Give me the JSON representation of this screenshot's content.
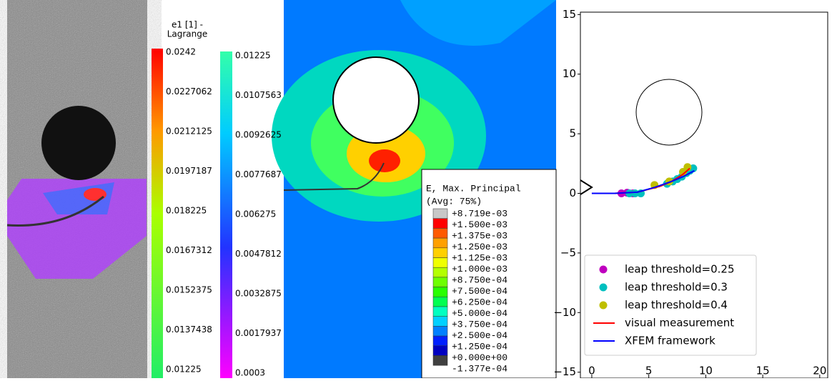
{
  "dic_panel": {
    "title": [
      "e1 [1] -",
      "Lagrange"
    ],
    "scale_left": [
      "0.0242",
      "0.0227062",
      "0.0212125",
      "0.0197187",
      "0.018225",
      "0.0167312",
      "0.0152375",
      "0.0137438",
      "0.01225"
    ],
    "scale_right": [
      "0.01225",
      "0.0107563",
      "0.0092625",
      "0.0077687",
      "0.006275",
      "0.0047812",
      "0.0032875",
      "0.0017937",
      "0.0003"
    ]
  },
  "fem_panel": {
    "legend_title": [
      "E, Max. Principal",
      "(Avg: 75%)"
    ],
    "levels": [
      "+8.719e-03",
      "+1.500e-03",
      "+1.375e-03",
      "+1.250e-03",
      "+1.125e-03",
      "+1.000e-03",
      "+8.750e-04",
      "+7.500e-04",
      "+6.250e-04",
      "+5.000e-04",
      "+3.750e-04",
      "+2.500e-04",
      "+1.250e-04",
      "+0.000e+00",
      "-1.377e-04"
    ],
    "colors": [
      "#c8c8c8",
      "#ff0000",
      "#ff5a00",
      "#ffa000",
      "#ffd000",
      "#f0ff00",
      "#b4ff00",
      "#6eff00",
      "#28ff00",
      "#00ff50",
      "#00ffc0",
      "#00d0ff",
      "#0080ff",
      "#0020ff",
      "#0000c0",
      "#404040"
    ]
  },
  "chart_data": {
    "type": "scatter",
    "xlim": [
      -1,
      20.7
    ],
    "ylim": [
      -15.5,
      15.2
    ],
    "xticks": [
      0,
      5,
      10,
      15,
      20
    ],
    "yticks": [
      {
        "value": -15,
        "label": "−15"
      },
      {
        "value": -10,
        "label": "−10"
      },
      {
        "value": -5,
        "label": "−5"
      },
      0,
      5,
      10,
      15
    ],
    "legend": "lower left",
    "series": [
      {
        "name": "leap threshold=0.25",
        "color": "#bf00bf",
        "kind": "scatter",
        "x": [
          2.6,
          3.1,
          3.6
        ],
        "y": [
          0.0,
          0.05,
          0.0
        ]
      },
      {
        "name": "leap threshold=0.3",
        "color": "#00bfbf",
        "kind": "scatter",
        "x": [
          3.3,
          3.8,
          4.3,
          6.6,
          7.1,
          7.5,
          7.9,
          8.3,
          8.6,
          8.9
        ],
        "y": [
          0.0,
          0.0,
          0.0,
          0.8,
          1.0,
          1.2,
          1.4,
          1.7,
          1.9,
          2.1
        ]
      },
      {
        "name": "leap threshold=0.4",
        "color": "#bfbf00",
        "kind": "scatter",
        "x": [
          5.5,
          6.8,
          8.0,
          8.4
        ],
        "y": [
          0.7,
          1.0,
          1.8,
          2.2
        ]
      },
      {
        "name": "visual measurement",
        "color": "#ff0000",
        "kind": "line",
        "x": [
          0,
          2,
          4,
          6,
          7,
          8,
          8.6
        ],
        "y": [
          0,
          0,
          0.1,
          0.6,
          1.0,
          1.6,
          2.1
        ]
      },
      {
        "name": "XFEM framework",
        "color": "#0000ff",
        "kind": "line",
        "x": [
          0,
          2,
          4,
          5.5,
          7,
          8,
          9
        ],
        "y": [
          0,
          0,
          0.1,
          0.5,
          1.0,
          1.4,
          1.9
        ]
      }
    ]
  }
}
